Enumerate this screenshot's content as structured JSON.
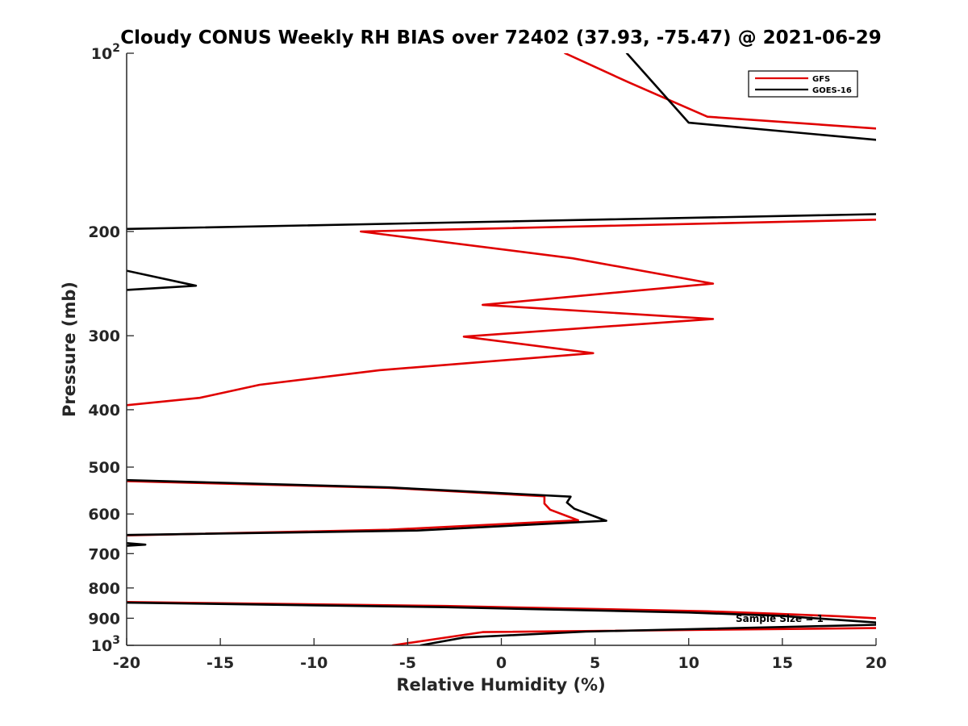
{
  "chart_data": {
    "type": "line",
    "title": "Cloudy CONUS Weekly RH BIAS over 72402 (37.93, -75.47) @ 2021-06-29",
    "xlabel": "Relative Humidity (%)",
    "ylabel": "Pressure (mb)",
    "xlim": [
      -20,
      20
    ],
    "ylim": [
      100,
      1000
    ],
    "y_scale": "log",
    "y_reversed": true,
    "grid": false,
    "legend_position": "top-right",
    "x_ticks": [
      "-20",
      "-15",
      "-10",
      "-5",
      "0",
      "5",
      "10",
      "15",
      "20"
    ],
    "y_ticks": [
      {
        "value": 100,
        "label": "10",
        "sup": "2"
      },
      {
        "value": 200,
        "label": "200"
      },
      {
        "value": 300,
        "label": "300"
      },
      {
        "value": 400,
        "label": "400"
      },
      {
        "value": 500,
        "label": "500"
      },
      {
        "value": 600,
        "label": "600"
      },
      {
        "value": 700,
        "label": "700"
      },
      {
        "value": 800,
        "label": "800"
      },
      {
        "value": 900,
        "label": "900"
      },
      {
        "value": 1000,
        "label": "10",
        "sup": "3"
      }
    ],
    "annotation": "Sample Size = 1",
    "series": [
      {
        "name": "GFS",
        "color": "#e00000",
        "segments": [
          [
            [
              3.4,
              100
            ],
            [
              6.8,
              112
            ],
            [
              11.0,
              128
            ],
            [
              20,
              134
            ]
          ],
          [
            [
              20,
              191
            ],
            [
              -7.5,
              200
            ],
            [
              3.8,
              222
            ],
            [
              11.3,
              245
            ],
            [
              -1.0,
              266
            ],
            [
              11.3,
              281
            ],
            [
              -2.0,
              301
            ],
            [
              4.9,
              321
            ],
            [
              -6.5,
              343
            ],
            [
              -12.9,
              363
            ],
            [
              -16.1,
              382
            ],
            [
              -20,
              393
            ]
          ],
          [
            [
              -20,
              528
            ],
            [
              -6,
              542
            ],
            [
              2.3,
              560
            ],
            [
              2.3,
              576
            ],
            [
              2.6,
              590
            ],
            [
              4.1,
              615
            ],
            [
              -6,
              638
            ],
            [
              -20,
              652
            ]
          ],
          [
            [
              -20,
              845
            ],
            [
              -3,
              858
            ],
            [
              11,
              876
            ],
            [
              14.5,
              884
            ],
            [
              18,
              893
            ],
            [
              20,
              900
            ]
          ],
          [
            [
              20,
              935
            ],
            [
              -1,
              950
            ],
            [
              -5.8,
              1000
            ]
          ]
        ]
      },
      {
        "name": "GOES-16",
        "color": "#000000",
        "segments": [
          [
            [
              6.7,
              100
            ],
            [
              8.3,
              114
            ],
            [
              10.0,
              131
            ],
            [
              20,
              140
            ]
          ],
          [
            [
              20,
              187
            ],
            [
              -20,
              198
            ]
          ],
          [
            [
              -20,
              233
            ],
            [
              -16.3,
              247
            ],
            [
              -20,
              251
            ]
          ],
          [
            [
              -20,
              526
            ],
            [
              -6,
              541
            ],
            [
              3.7,
              561
            ],
            [
              3.5,
              574
            ],
            [
              3.9,
              588
            ],
            [
              5.6,
              616
            ],
            [
              -4.5,
              640
            ],
            [
              -20,
              651
            ]
          ],
          [
            [
              -20,
              672
            ],
            [
              -19,
              676
            ],
            [
              -20,
              679
            ]
          ],
          [
            [
              -20,
              847
            ],
            [
              -3,
              862
            ],
            [
              10,
              880
            ],
            [
              15,
              892
            ],
            [
              20,
              915
            ],
            [
              20,
              923
            ],
            [
              4.5,
              948
            ],
            [
              -2,
              970
            ],
            [
              -4.3,
              1000
            ]
          ]
        ]
      }
    ]
  }
}
